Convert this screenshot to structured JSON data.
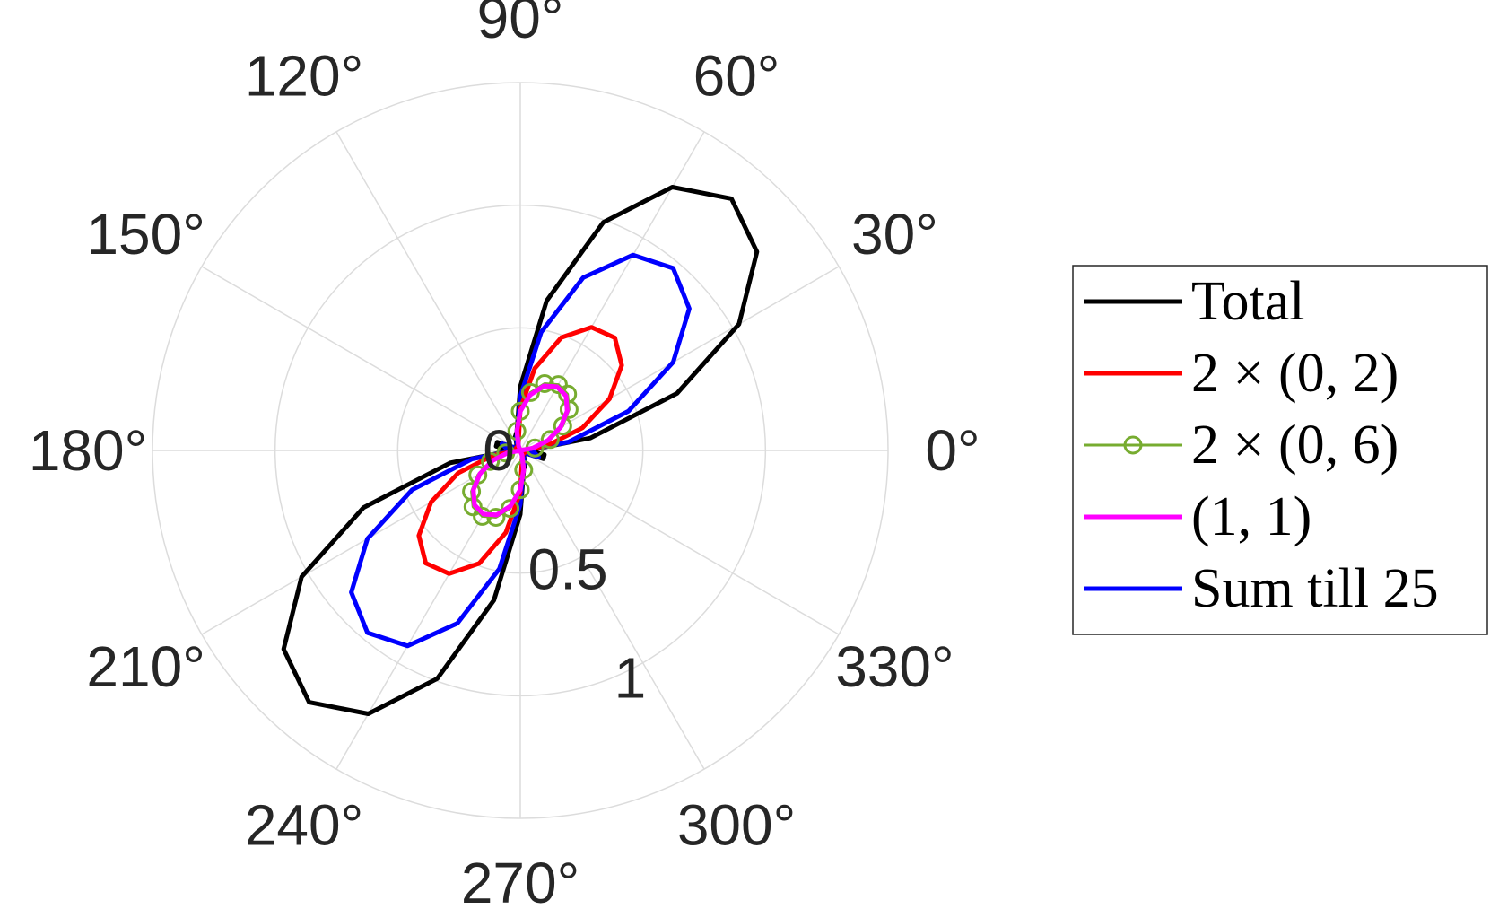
{
  "chart_data": {
    "type": "polar-line",
    "theta_unit": "degrees",
    "r_range": [
      0,
      1.5
    ],
    "r_ticks": [
      0,
      0.5,
      1
    ],
    "r_tick_labels": [
      "0",
      "0.5",
      "1"
    ],
    "theta_ticks": [
      0,
      30,
      60,
      90,
      120,
      150,
      180,
      210,
      240,
      270,
      300,
      330
    ],
    "theta_tick_labels": [
      "0°",
      "30°",
      "60°",
      "90°",
      "120°",
      "150°",
      "180°",
      "210°",
      "240°",
      "270°",
      "300°",
      "330°"
    ],
    "grid": true,
    "legend_position": "right",
    "series": [
      {
        "name": "Total",
        "color": "#000000",
        "marker": "none",
        "points": [
          [
            0,
            0.03
          ],
          [
            10,
            0.29
          ],
          [
            20,
            0.68
          ],
          [
            30,
            1.03
          ],
          [
            40,
            1.26
          ],
          [
            50,
            1.34
          ],
          [
            60,
            1.24
          ],
          [
            70,
            0.99
          ],
          [
            80,
            0.62
          ],
          [
            90,
            0.26
          ],
          [
            100,
            0.08
          ],
          [
            110,
            0.06
          ],
          [
            120,
            0.03
          ],
          [
            150,
            0.02
          ],
          [
            160,
            0.1
          ],
          [
            170,
            0.1
          ],
          [
            180,
            0.03
          ],
          [
            190,
            0.29
          ],
          [
            200,
            0.68
          ],
          [
            210,
            1.03
          ],
          [
            220,
            1.26
          ],
          [
            230,
            1.34
          ],
          [
            240,
            1.24
          ],
          [
            250,
            0.99
          ],
          [
            260,
            0.62
          ],
          [
            270,
            0.26
          ],
          [
            280,
            0.08
          ],
          [
            290,
            0.06
          ],
          [
            300,
            0.03
          ],
          [
            330,
            0.02
          ],
          [
            340,
            0.1
          ],
          [
            350,
            0.1
          ],
          [
            360,
            0.03
          ]
        ]
      },
      {
        "name": "2 × (0, 2)",
        "color": "#ff0000",
        "marker": "none",
        "points": [
          [
            0,
            0.0
          ],
          [
            10,
            0.11
          ],
          [
            20,
            0.27
          ],
          [
            30,
            0.42
          ],
          [
            40,
            0.54
          ],
          [
            50,
            0.6
          ],
          [
            60,
            0.58
          ],
          [
            70,
            0.49
          ],
          [
            80,
            0.34
          ],
          [
            90,
            0.17
          ],
          [
            100,
            0.04
          ],
          [
            120,
            0.02
          ],
          [
            150,
            0.02
          ],
          [
            170,
            0.02
          ],
          [
            180,
            0.0
          ],
          [
            190,
            0.11
          ],
          [
            200,
            0.27
          ],
          [
            210,
            0.42
          ],
          [
            220,
            0.54
          ],
          [
            230,
            0.6
          ],
          [
            240,
            0.58
          ],
          [
            250,
            0.49
          ],
          [
            260,
            0.34
          ],
          [
            270,
            0.17
          ],
          [
            280,
            0.04
          ],
          [
            300,
            0.02
          ],
          [
            330,
            0.02
          ],
          [
            350,
            0.02
          ],
          [
            360,
            0.0
          ]
        ]
      },
      {
        "name": "2 × (0, 6)",
        "color": "#77ac30",
        "marker": "circle",
        "points": [
          [
            0,
            0.0
          ],
          [
            10,
            0.06
          ],
          [
            20,
            0.13
          ],
          [
            30,
            0.2
          ],
          [
            40,
            0.26
          ],
          [
            50,
            0.3
          ],
          [
            60,
            0.31
          ],
          [
            70,
            0.29
          ],
          [
            80,
            0.24
          ],
          [
            90,
            0.16
          ],
          [
            100,
            0.08
          ],
          [
            110,
            0.02
          ],
          [
            120,
            0.0
          ],
          [
            150,
            0.0
          ],
          [
            180,
            0.0
          ],
          [
            190,
            0.06
          ],
          [
            200,
            0.13
          ],
          [
            210,
            0.2
          ],
          [
            220,
            0.26
          ],
          [
            230,
            0.3
          ],
          [
            240,
            0.31
          ],
          [
            250,
            0.29
          ],
          [
            260,
            0.24
          ],
          [
            270,
            0.16
          ],
          [
            280,
            0.08
          ],
          [
            290,
            0.02
          ],
          [
            300,
            0.0
          ],
          [
            330,
            0.0
          ],
          [
            360,
            0.0
          ]
        ]
      },
      {
        "name": "(1, 1)",
        "color": "#ff00ff",
        "marker": "none",
        "points": [
          [
            0,
            0.0
          ],
          [
            10,
            0.05
          ],
          [
            20,
            0.12
          ],
          [
            30,
            0.19
          ],
          [
            40,
            0.25
          ],
          [
            50,
            0.29
          ],
          [
            60,
            0.3
          ],
          [
            70,
            0.28
          ],
          [
            80,
            0.23
          ],
          [
            90,
            0.16
          ],
          [
            100,
            0.08
          ],
          [
            110,
            0.02
          ],
          [
            120,
            0.0
          ],
          [
            150,
            0.0
          ],
          [
            180,
            0.0
          ],
          [
            190,
            0.05
          ],
          [
            200,
            0.12
          ],
          [
            210,
            0.19
          ],
          [
            220,
            0.25
          ],
          [
            230,
            0.29
          ],
          [
            240,
            0.3
          ],
          [
            250,
            0.28
          ],
          [
            260,
            0.23
          ],
          [
            270,
            0.16
          ],
          [
            280,
            0.08
          ],
          [
            290,
            0.02
          ],
          [
            300,
            0.0
          ],
          [
            330,
            0.0
          ],
          [
            360,
            0.0
          ]
        ]
      },
      {
        "name": "Sum till 25",
        "color": "#0000ff",
        "marker": "none",
        "points": [
          [
            0,
            0.02
          ],
          [
            10,
            0.2
          ],
          [
            20,
            0.47
          ],
          [
            30,
            0.72
          ],
          [
            40,
            0.9
          ],
          [
            50,
            0.97
          ],
          [
            60,
            0.92
          ],
          [
            70,
            0.75
          ],
          [
            80,
            0.49
          ],
          [
            90,
            0.22
          ],
          [
            100,
            0.07
          ],
          [
            110,
            0.05
          ],
          [
            120,
            0.02
          ],
          [
            150,
            0.02
          ],
          [
            160,
            0.08
          ],
          [
            170,
            0.06
          ],
          [
            180,
            0.02
          ],
          [
            190,
            0.2
          ],
          [
            200,
            0.47
          ],
          [
            210,
            0.72
          ],
          [
            220,
            0.9
          ],
          [
            230,
            0.97
          ],
          [
            240,
            0.92
          ],
          [
            250,
            0.75
          ],
          [
            260,
            0.49
          ],
          [
            270,
            0.22
          ],
          [
            280,
            0.07
          ],
          [
            290,
            0.05
          ],
          [
            300,
            0.02
          ],
          [
            330,
            0.02
          ],
          [
            340,
            0.08
          ],
          [
            350,
            0.06
          ],
          [
            360,
            0.02
          ]
        ]
      }
    ]
  }
}
